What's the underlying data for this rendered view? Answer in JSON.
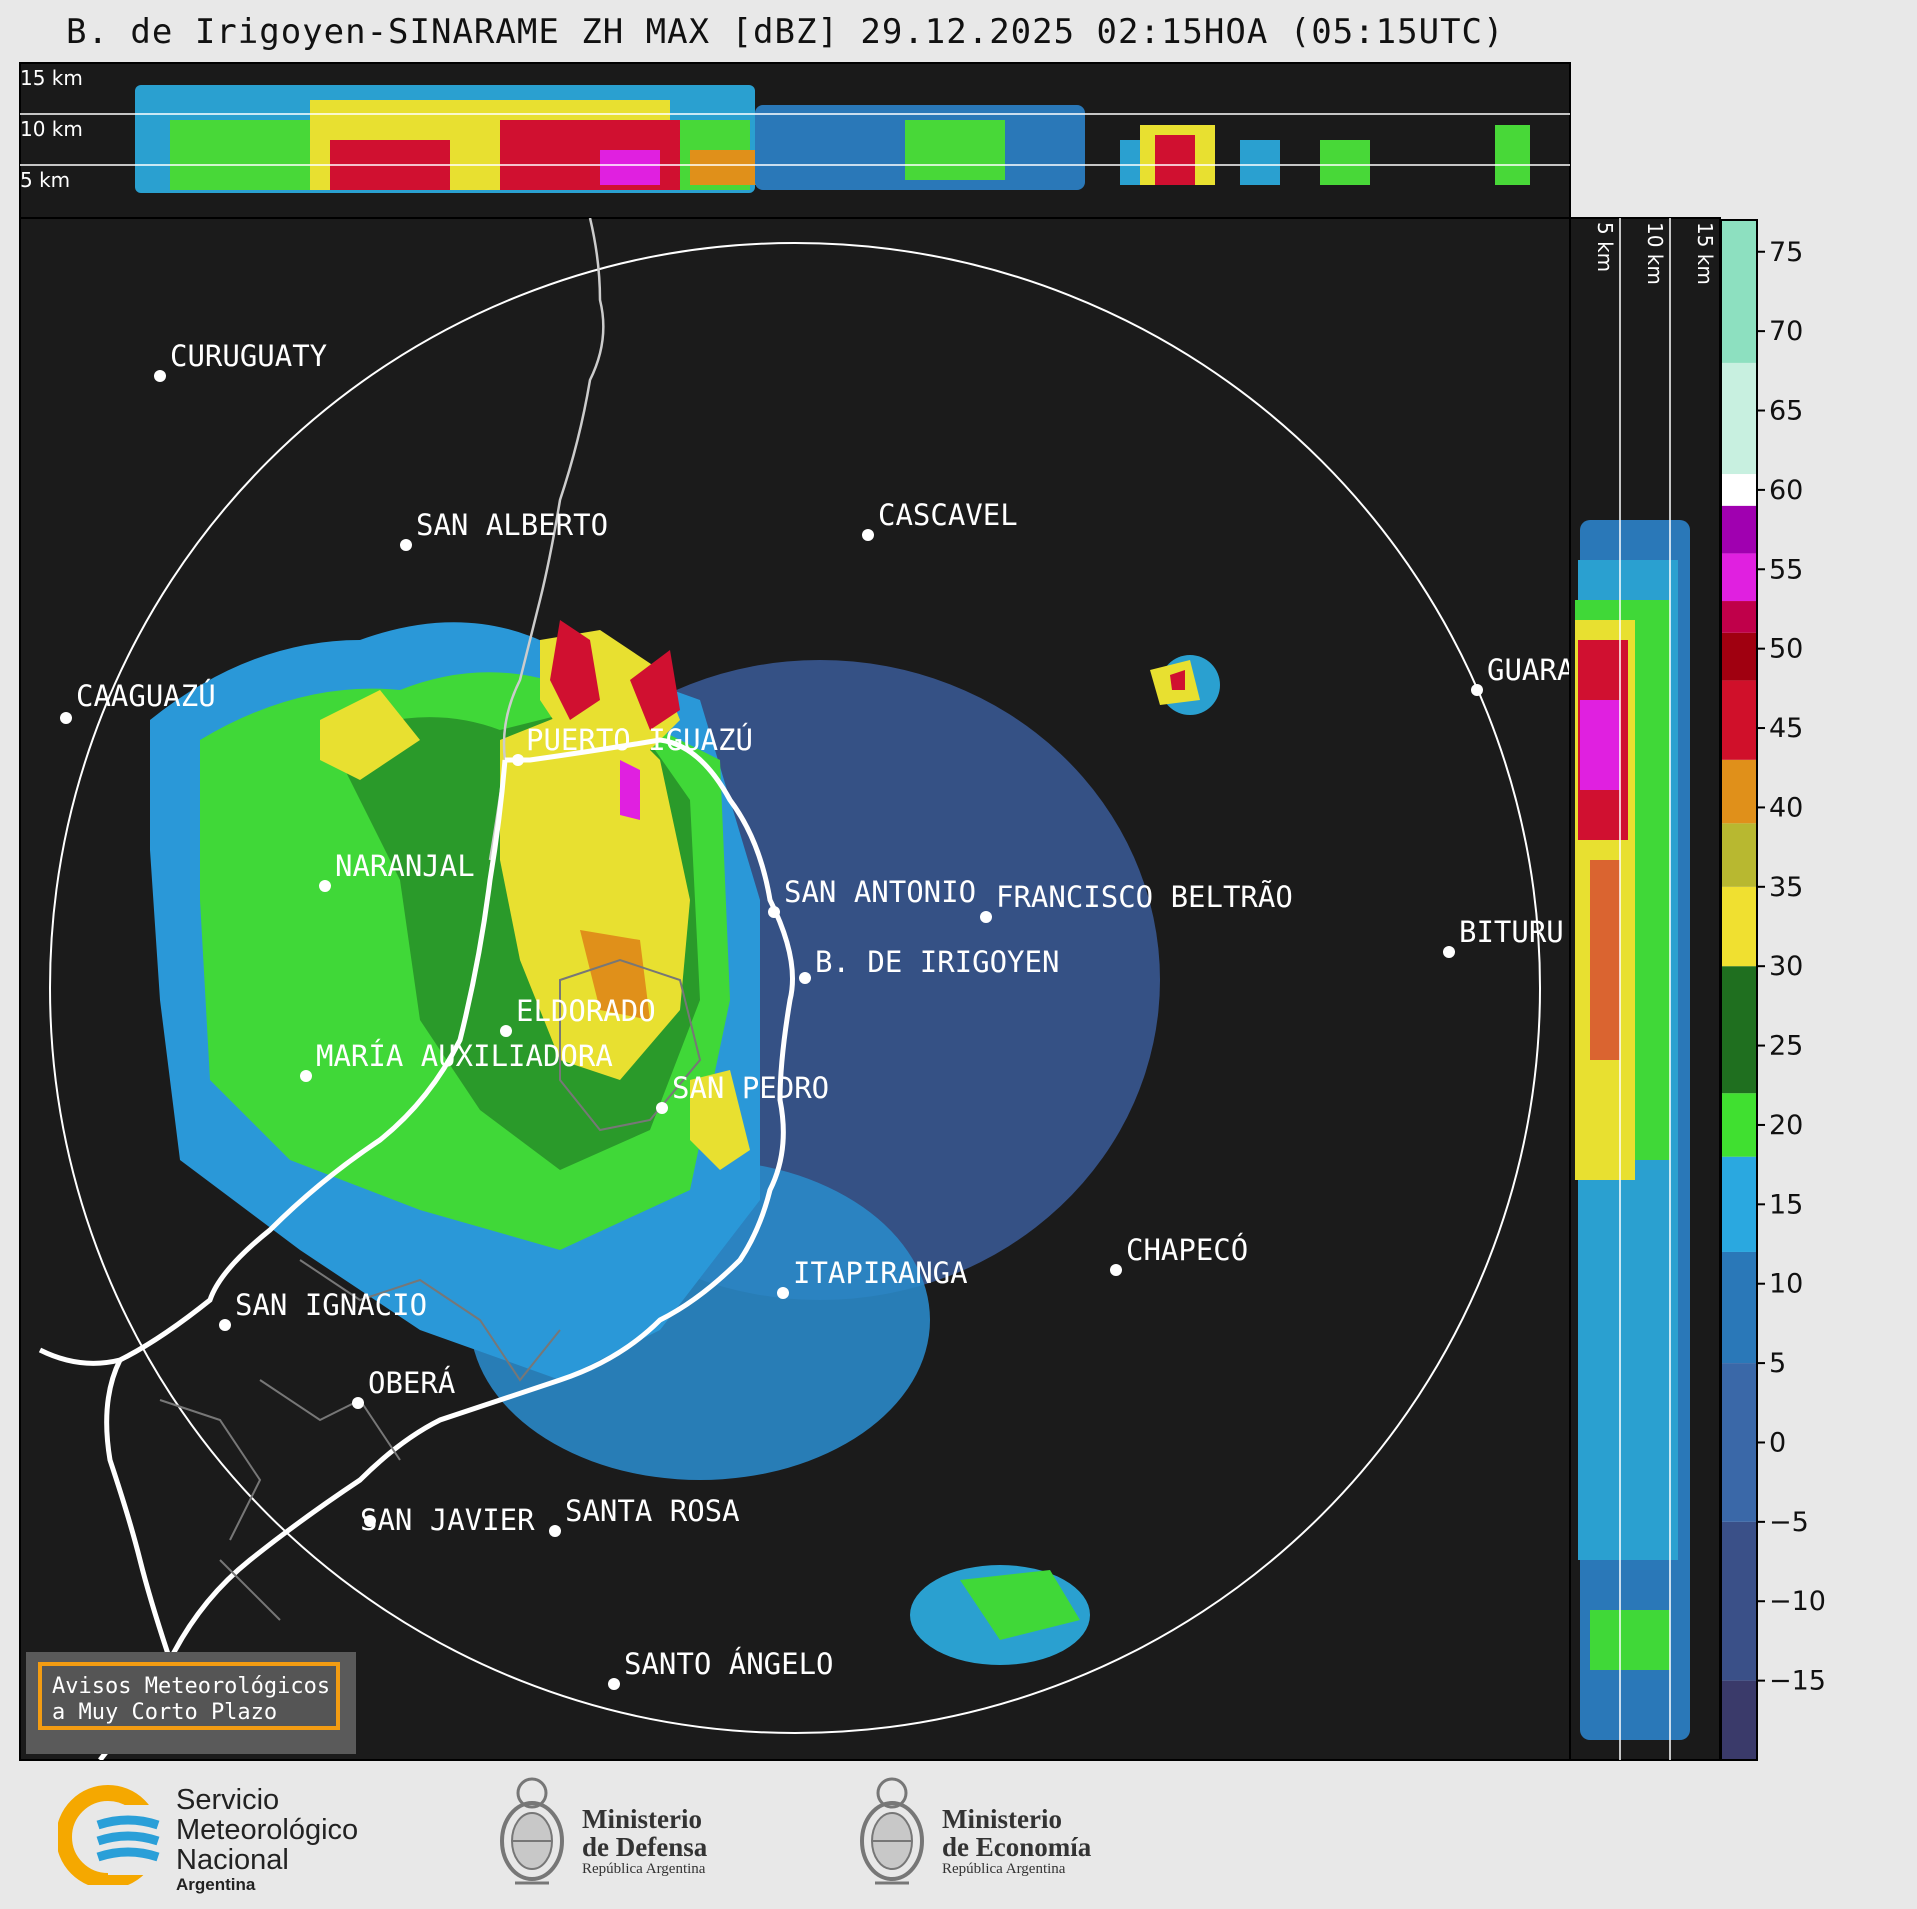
{
  "title": "B. de Irigoyen-SINARAME ZH MAX [dBZ] 29.12.2025 02:15HOA (05:15UTC)",
  "top_profile_heights": [
    "15 km",
    "10 km",
    "5 km"
  ],
  "side_profile_heights": [
    "5 km",
    "10 km",
    "15 km"
  ],
  "cities": [
    {
      "name": "CURUGUATY"
    },
    {
      "name": "SAN ALBERTO"
    },
    {
      "name": "CASCAVEL"
    },
    {
      "name": "CAAGUAZÚ"
    },
    {
      "name": "GUARA"
    },
    {
      "name": "PUERTO IGUAZÚ"
    },
    {
      "name": "NARANJAL"
    },
    {
      "name": "SAN ANTONIO"
    },
    {
      "name": "FRANCISCO BELTRÃO"
    },
    {
      "name": "BITURU"
    },
    {
      "name": "B. DE IRIGOYEN"
    },
    {
      "name": "ELDORADO"
    },
    {
      "name": "MARÍA AUXILIADORA"
    },
    {
      "name": "SAN PEDRO"
    },
    {
      "name": "CHAPECÓ"
    },
    {
      "name": "ITAPIRANGA"
    },
    {
      "name": "SAN IGNACIO"
    },
    {
      "name": "OBERÁ"
    },
    {
      "name": "SAN JAVIER"
    },
    {
      "name": "SANTA ROSA"
    },
    {
      "name": "SANTO ÁNGELO"
    }
  ],
  "colorbar": {
    "ticks": [
      "75",
      "70",
      "65",
      "60",
      "55",
      "50",
      "45",
      "40",
      "35",
      "30",
      "25",
      "20",
      "15",
      "10",
      "5",
      "0",
      "−5",
      "−10",
      "−15"
    ],
    "range": [
      -20,
      77
    ],
    "colors": {
      "light_teal": "#8de0c0",
      "white": "#ffffff",
      "purple": "#a000b0",
      "magenta": "#e020e0",
      "red": "#d0102a",
      "dark_red": "#a00010",
      "orange": "#e0901a",
      "yellow": "#f0e030",
      "dark_green": "#1f6f1f",
      "bright_green": "#40e030",
      "cyan": "#2aa8e0",
      "blue": "#2a78b8",
      "slate": "#3a5088",
      "dark_slate": "#3a3a6a"
    }
  },
  "warning_box": {
    "line1": "Avisos Meteorológicos",
    "line2": "a Muy Corto Plazo"
  },
  "logos": {
    "smn_line1": "Servicio",
    "smn_line2": "Meteorológico",
    "smn_line3": "Nacional",
    "smn_line4": "Argentina",
    "defensa_line1": "Ministerio",
    "defensa_line2": "de Defensa",
    "defensa_sub": "República Argentina",
    "economia_line1": "Ministerio",
    "economia_line2": "de Economía",
    "economia_sub": "República Argentina"
  }
}
